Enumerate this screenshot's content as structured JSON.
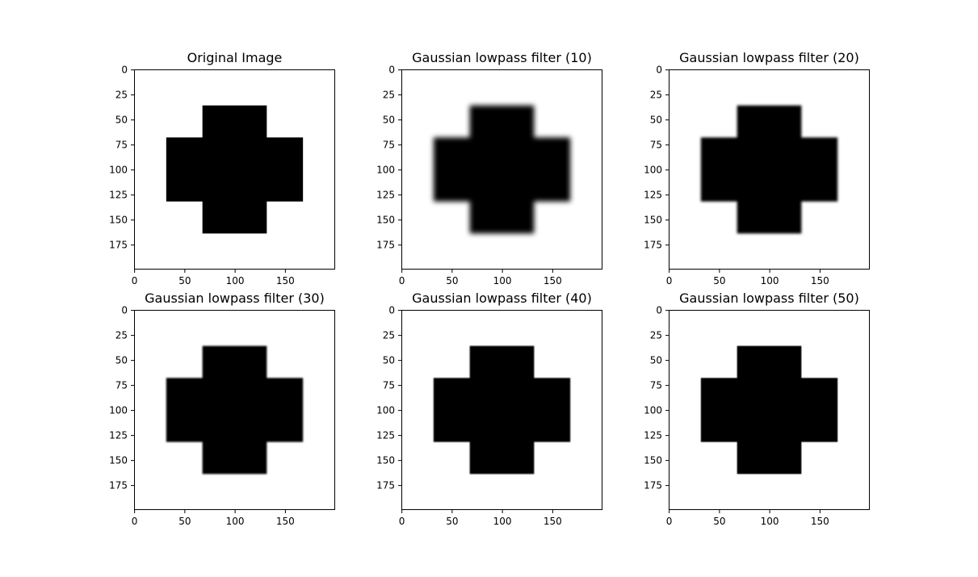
{
  "figure": {
    "background": "#ffffff",
    "foreground": "#000000"
  },
  "chart_data": [
    {
      "type": "heatmap",
      "title": "Original Image",
      "colormap": "gray",
      "blur": 0,
      "image_shape": [
        200,
        200
      ],
      "shape": "cross",
      "cross": {
        "horizontal_bar": {
          "x": [
            32,
            168
          ],
          "y": [
            68,
            132
          ]
        },
        "vertical_bar": {
          "x": [
            68,
            132
          ],
          "y": [
            36,
            164
          ]
        }
      },
      "x_ticks": [
        0,
        50,
        100,
        150
      ],
      "y_ticks": [
        0,
        25,
        50,
        75,
        100,
        125,
        150,
        175
      ]
    },
    {
      "type": "heatmap",
      "title": "Gaussian lowpass filter (10)",
      "cutoff": 10,
      "colormap": "gray",
      "blur": 3.2,
      "image_shape": [
        200,
        200
      ],
      "shape": "cross",
      "cross": {
        "horizontal_bar": {
          "x": [
            32,
            168
          ],
          "y": [
            68,
            132
          ]
        },
        "vertical_bar": {
          "x": [
            68,
            132
          ],
          "y": [
            36,
            164
          ]
        }
      },
      "x_ticks": [
        0,
        50,
        100,
        150
      ],
      "y_ticks": [
        0,
        25,
        50,
        75,
        100,
        125,
        150,
        175
      ]
    },
    {
      "type": "heatmap",
      "title": "Gaussian lowpass filter (20)",
      "cutoff": 20,
      "colormap": "gray",
      "blur": 1.7,
      "image_shape": [
        200,
        200
      ],
      "shape": "cross",
      "cross": {
        "horizontal_bar": {
          "x": [
            32,
            168
          ],
          "y": [
            68,
            132
          ]
        },
        "vertical_bar": {
          "x": [
            68,
            132
          ],
          "y": [
            36,
            164
          ]
        }
      },
      "x_ticks": [
        0,
        50,
        100,
        150
      ],
      "y_ticks": [
        0,
        25,
        50,
        75,
        100,
        125,
        150,
        175
      ]
    },
    {
      "type": "heatmap",
      "title": "Gaussian lowpass filter (30)",
      "cutoff": 30,
      "colormap": "gray",
      "blur": 1.15,
      "image_shape": [
        200,
        200
      ],
      "shape": "cross",
      "cross": {
        "horizontal_bar": {
          "x": [
            32,
            168
          ],
          "y": [
            68,
            132
          ]
        },
        "vertical_bar": {
          "x": [
            68,
            132
          ],
          "y": [
            36,
            164
          ]
        }
      },
      "x_ticks": [
        0,
        50,
        100,
        150
      ],
      "y_ticks": [
        0,
        25,
        50,
        75,
        100,
        125,
        150,
        175
      ]
    },
    {
      "type": "heatmap",
      "title": "Gaussian lowpass filter (40)",
      "cutoff": 40,
      "colormap": "gray",
      "blur": 0.85,
      "image_shape": [
        200,
        200
      ],
      "shape": "cross",
      "cross": {
        "horizontal_bar": {
          "x": [
            32,
            168
          ],
          "y": [
            68,
            132
          ]
        },
        "vertical_bar": {
          "x": [
            68,
            132
          ],
          "y": [
            36,
            164
          ]
        }
      },
      "x_ticks": [
        0,
        50,
        100,
        150
      ],
      "y_ticks": [
        0,
        25,
        50,
        75,
        100,
        125,
        150,
        175
      ]
    },
    {
      "type": "heatmap",
      "title": "Gaussian lowpass filter (50)",
      "cutoff": 50,
      "colormap": "gray",
      "blur": 0.65,
      "image_shape": [
        200,
        200
      ],
      "shape": "cross",
      "cross": {
        "horizontal_bar": {
          "x": [
            32,
            168
          ],
          "y": [
            68,
            132
          ]
        },
        "vertical_bar": {
          "x": [
            68,
            132
          ],
          "y": [
            36,
            164
          ]
        }
      },
      "x_ticks": [
        0,
        50,
        100,
        150
      ],
      "y_ticks": [
        0,
        25,
        50,
        75,
        100,
        125,
        150,
        175
      ]
    }
  ]
}
